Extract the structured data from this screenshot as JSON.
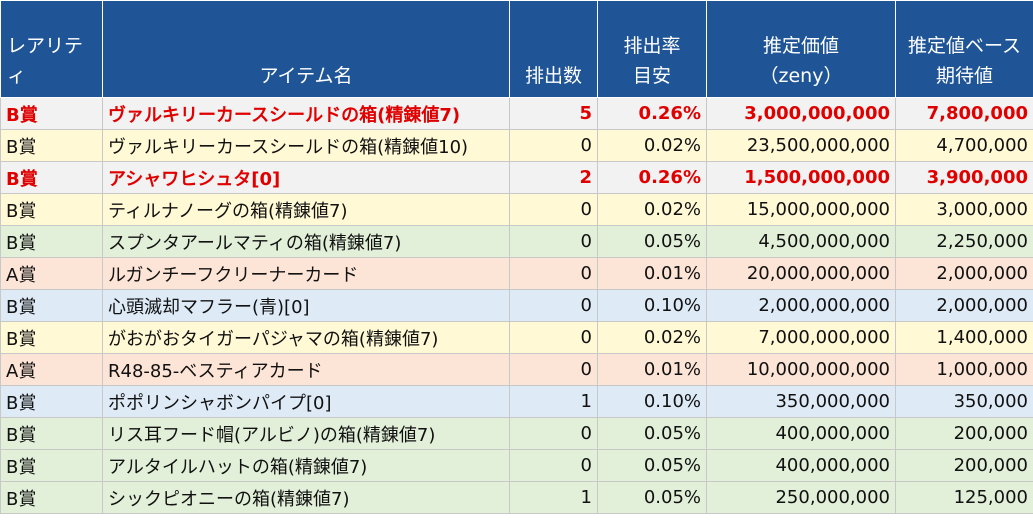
{
  "headers": {
    "rarity": "レアリティ",
    "item_name": "アイテム名",
    "count": "排出数",
    "rate_line1": "排出率",
    "rate_line2": "目安",
    "value_line1": "推定価値",
    "value_line2": "（zeny）",
    "expected_line1": "推定値ベース",
    "expected_line2": "期待値"
  },
  "colors": {
    "header_bg": "#1f5597",
    "row_gray": "#f2f2f2",
    "row_yellow": "#fff9d6",
    "row_green": "#e2f0d9",
    "row_pink": "#fce4d6",
    "row_blue": "#deebf7",
    "highlight_text": "#e10000"
  },
  "rows": [
    {
      "rarity": "B賞",
      "name": "ヴァルキリーカースシールドの箱(精錬値7)",
      "count": "5",
      "rate": "0.26%",
      "value": "3,000,000,000",
      "expected": "7,800,000",
      "bg": "#f2f2f2",
      "highlight": true
    },
    {
      "rarity": "B賞",
      "name": "ヴァルキリーカースシールドの箱(精錬値10)",
      "count": "0",
      "rate": "0.02%",
      "value": "23,500,000,000",
      "expected": "4,700,000",
      "bg": "#fff9d6",
      "highlight": false
    },
    {
      "rarity": "B賞",
      "name": "アシャワヒシュタ[0]",
      "count": "2",
      "rate": "0.26%",
      "value": "1,500,000,000",
      "expected": "3,900,000",
      "bg": "#f2f2f2",
      "highlight": true
    },
    {
      "rarity": "B賞",
      "name": "ティルナノーグの箱(精錬値7)",
      "count": "0",
      "rate": "0.02%",
      "value": "15,000,000,000",
      "expected": "3,000,000",
      "bg": "#fff9d6",
      "highlight": false
    },
    {
      "rarity": "B賞",
      "name": "スプンタアールマティの箱(精錬値7)",
      "count": "0",
      "rate": "0.05%",
      "value": "4,500,000,000",
      "expected": "2,250,000",
      "bg": "#e2f0d9",
      "highlight": false
    },
    {
      "rarity": "A賞",
      "name": "ルガンチーフクリーナーカード",
      "count": "0",
      "rate": "0.01%",
      "value": "20,000,000,000",
      "expected": "2,000,000",
      "bg": "#fce4d6",
      "highlight": false
    },
    {
      "rarity": "B賞",
      "name": "心頭滅却マフラー(青)[0]",
      "count": "0",
      "rate": "0.10%",
      "value": "2,000,000,000",
      "expected": "2,000,000",
      "bg": "#deebf7",
      "highlight": false
    },
    {
      "rarity": "B賞",
      "name": "がおがおタイガーパジャマの箱(精錬値7)",
      "count": "0",
      "rate": "0.02%",
      "value": "7,000,000,000",
      "expected": "1,400,000",
      "bg": "#fff9d6",
      "highlight": false
    },
    {
      "rarity": "A賞",
      "name": "R48-85-ベスティアカード",
      "count": "0",
      "rate": "0.01%",
      "value": "10,000,000,000",
      "expected": "1,000,000",
      "bg": "#fce4d6",
      "highlight": false
    },
    {
      "rarity": "B賞",
      "name": "ポポリンシャボンパイプ[0]",
      "count": "1",
      "rate": "0.10%",
      "value": "350,000,000",
      "expected": "350,000",
      "bg": "#deebf7",
      "highlight": false
    },
    {
      "rarity": "B賞",
      "name": "リス耳フード帽(アルビノ)の箱(精錬値7)",
      "count": "0",
      "rate": "0.05%",
      "value": "400,000,000",
      "expected": "200,000",
      "bg": "#e2f0d9",
      "highlight": false
    },
    {
      "rarity": "B賞",
      "name": "アルタイルハットの箱(精錬値7)",
      "count": "0",
      "rate": "0.05%",
      "value": "400,000,000",
      "expected": "200,000",
      "bg": "#e2f0d9",
      "highlight": false
    },
    {
      "rarity": "B賞",
      "name": "シックピオニーの箱(精錬値7)",
      "count": "1",
      "rate": "0.05%",
      "value": "250,000,000",
      "expected": "125,000",
      "bg": "#e2f0d9",
      "highlight": false
    }
  ]
}
